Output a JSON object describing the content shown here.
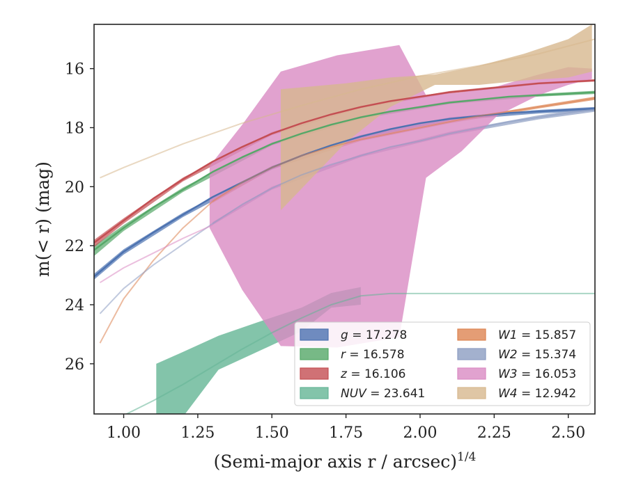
{
  "chart_data": {
    "type": "line",
    "xlabel": "(Semi-major axis r / arcsec)",
    "xlabel_superscript": "1/4",
    "ylabel": "m(< r) (mag)",
    "xlim": [
      0.9,
      2.59
    ],
    "ylim": [
      27.7,
      14.5
    ],
    "y_inverted": true,
    "x_ticks": [
      1.0,
      1.25,
      1.5,
      1.75,
      2.0,
      2.25,
      2.5
    ],
    "x_tick_labels": [
      "1.00",
      "1.25",
      "1.50",
      "1.75",
      "2.00",
      "2.25",
      "2.50"
    ],
    "y_ticks": [
      16,
      18,
      20,
      22,
      24,
      26
    ],
    "y_tick_labels": [
      "16",
      "18",
      "20",
      "22",
      "24",
      "26"
    ],
    "grid": false,
    "legend_position": "lower-right",
    "series": [
      {
        "name": "g = 17.278",
        "color": "#4c72b0",
        "line": [
          [
            0.9,
            23.05
          ],
          [
            1.0,
            22.2
          ],
          [
            1.1,
            21.55
          ],
          [
            1.2,
            20.95
          ],
          [
            1.3,
            20.35
          ],
          [
            1.4,
            19.85
          ],
          [
            1.5,
            19.35
          ],
          [
            1.6,
            18.95
          ],
          [
            1.7,
            18.6
          ],
          [
            1.8,
            18.3
          ],
          [
            1.9,
            18.05
          ],
          [
            2.0,
            17.85
          ],
          [
            2.1,
            17.7
          ],
          [
            2.2,
            17.6
          ],
          [
            2.3,
            17.5
          ],
          [
            2.4,
            17.45
          ],
          [
            2.5,
            17.4
          ],
          [
            2.59,
            17.35
          ]
        ],
        "band": [
          [
            0.9,
            22.95,
            23.15
          ],
          [
            1.0,
            22.12,
            22.3
          ],
          [
            1.2,
            20.88,
            21.03
          ],
          [
            1.5,
            19.3,
            19.42
          ],
          [
            1.8,
            18.25,
            18.36
          ],
          [
            2.1,
            17.65,
            17.76
          ],
          [
            2.4,
            17.4,
            17.52
          ],
          [
            2.59,
            17.3,
            17.42
          ]
        ]
      },
      {
        "name": "r = 16.578",
        "color": "#55a868",
        "line": [
          [
            0.9,
            22.15
          ],
          [
            1.0,
            21.4
          ],
          [
            1.1,
            20.7
          ],
          [
            1.2,
            20.1
          ],
          [
            1.3,
            19.5
          ],
          [
            1.4,
            19.0
          ],
          [
            1.5,
            18.55
          ],
          [
            1.6,
            18.2
          ],
          [
            1.7,
            17.9
          ],
          [
            1.8,
            17.65
          ],
          [
            1.9,
            17.45
          ],
          [
            2.0,
            17.3
          ],
          [
            2.1,
            17.15
          ],
          [
            2.2,
            17.05
          ],
          [
            2.3,
            16.95
          ],
          [
            2.4,
            16.9
          ],
          [
            2.5,
            16.85
          ],
          [
            2.59,
            16.8
          ]
        ],
        "band": [
          [
            0.9,
            22.0,
            22.35
          ],
          [
            1.0,
            21.3,
            21.5
          ],
          [
            1.2,
            20.03,
            20.18
          ],
          [
            1.5,
            18.5,
            18.6
          ],
          [
            1.8,
            17.6,
            17.7
          ],
          [
            2.1,
            17.1,
            17.2
          ],
          [
            2.4,
            16.85,
            16.95
          ],
          [
            2.59,
            16.75,
            16.86
          ]
        ]
      },
      {
        "name": "z = 16.106",
        "color": "#c44e52",
        "line": [
          [
            0.9,
            21.9
          ],
          [
            1.0,
            21.15
          ],
          [
            1.1,
            20.4
          ],
          [
            1.2,
            19.75
          ],
          [
            1.3,
            19.15
          ],
          [
            1.4,
            18.65
          ],
          [
            1.5,
            18.2
          ],
          [
            1.6,
            17.85
          ],
          [
            1.7,
            17.55
          ],
          [
            1.8,
            17.3
          ],
          [
            1.9,
            17.1
          ],
          [
            2.0,
            16.95
          ],
          [
            2.1,
            16.8
          ],
          [
            2.2,
            16.7
          ],
          [
            2.3,
            16.6
          ],
          [
            2.4,
            16.5
          ],
          [
            2.5,
            16.45
          ],
          [
            2.59,
            16.4
          ]
        ],
        "band": [
          [
            0.9,
            21.8,
            22.05
          ],
          [
            1.0,
            21.07,
            21.25
          ],
          [
            1.2,
            19.69,
            19.82
          ],
          [
            1.5,
            18.15,
            18.25
          ],
          [
            1.8,
            17.26,
            17.34
          ],
          [
            2.1,
            16.76,
            16.84
          ],
          [
            2.4,
            16.46,
            16.54
          ],
          [
            2.59,
            16.36,
            16.44
          ]
        ]
      },
      {
        "name": "NUV = 23.641",
        "color": "#64b595",
        "line": [
          [
            0.9,
            28.2
          ],
          [
            1.0,
            27.75
          ],
          [
            1.1,
            27.25
          ],
          [
            1.2,
            26.7
          ],
          [
            1.3,
            26.1
          ],
          [
            1.4,
            25.5
          ],
          [
            1.5,
            24.95
          ],
          [
            1.6,
            24.45
          ],
          [
            1.7,
            24.0
          ],
          [
            1.8,
            23.7
          ],
          [
            1.9,
            23.62
          ],
          [
            2.0,
            23.62
          ],
          [
            2.3,
            23.62
          ],
          [
            2.59,
            23.62
          ]
        ],
        "band": [
          [
            1.11,
            26.0,
            28.5
          ],
          [
            1.2,
            25.6,
            27.8
          ],
          [
            1.32,
            25.05,
            26.2
          ],
          [
            1.45,
            24.6,
            25.6
          ],
          [
            1.6,
            24.1,
            24.9
          ],
          [
            1.7,
            23.6,
            24.1
          ],
          [
            1.8,
            23.4,
            24.0
          ]
        ]
      },
      {
        "name": "W1 = 15.857",
        "color": "#dd8452",
        "line": [
          [
            0.92,
            25.3
          ],
          [
            1.0,
            23.8
          ],
          [
            1.1,
            22.5
          ],
          [
            1.2,
            21.4
          ],
          [
            1.3,
            20.5
          ],
          [
            1.4,
            19.85
          ],
          [
            1.5,
            19.35
          ],
          [
            1.6,
            18.95
          ],
          [
            1.7,
            18.65
          ],
          [
            1.8,
            18.4
          ],
          [
            1.9,
            18.2
          ],
          [
            2.0,
            18.0
          ],
          [
            2.1,
            17.8
          ],
          [
            2.2,
            17.6
          ],
          [
            2.3,
            17.45
          ],
          [
            2.4,
            17.3
          ],
          [
            2.5,
            17.15
          ],
          [
            2.59,
            17.0
          ]
        ],
        "band": [
          [
            1.3,
            20.45,
            20.55
          ],
          [
            1.5,
            19.3,
            19.4
          ],
          [
            1.8,
            18.35,
            18.45
          ],
          [
            2.1,
            17.75,
            17.85
          ],
          [
            2.4,
            17.25,
            17.35
          ],
          [
            2.59,
            16.95,
            17.06
          ]
        ]
      },
      {
        "name": "W2 = 15.374",
        "color": "#8c9dc2",
        "line": [
          [
            0.92,
            24.3
          ],
          [
            1.0,
            23.45
          ],
          [
            1.1,
            22.65
          ],
          [
            1.2,
            21.95
          ],
          [
            1.3,
            21.25
          ],
          [
            1.4,
            20.6
          ],
          [
            1.5,
            20.05
          ],
          [
            1.6,
            19.6
          ],
          [
            1.7,
            19.25
          ],
          [
            1.8,
            18.95
          ],
          [
            1.9,
            18.65
          ],
          [
            2.0,
            18.45
          ],
          [
            2.1,
            18.2
          ],
          [
            2.2,
            18.0
          ],
          [
            2.3,
            17.8
          ],
          [
            2.4,
            17.65
          ],
          [
            2.5,
            17.5
          ],
          [
            2.59,
            17.38
          ]
        ],
        "band": [
          [
            1.3,
            21.2,
            21.3
          ],
          [
            1.5,
            20.0,
            20.1
          ],
          [
            1.8,
            18.9,
            19.0
          ],
          [
            2.1,
            18.14,
            18.26
          ],
          [
            2.4,
            17.58,
            17.72
          ],
          [
            2.59,
            17.3,
            17.46
          ]
        ]
      },
      {
        "name": "W3 = 16.053",
        "color": "#da8bc3",
        "line": [
          [
            0.92,
            23.25
          ],
          [
            1.0,
            22.75
          ],
          [
            1.1,
            22.25
          ],
          [
            1.2,
            21.75
          ],
          [
            1.3,
            21.3
          ]
        ],
        "band": [
          [
            1.29,
            19.3,
            21.4
          ],
          [
            1.4,
            17.9,
            23.5
          ],
          [
            1.53,
            16.1,
            25.4
          ],
          [
            1.72,
            15.55,
            25.45
          ],
          [
            1.93,
            15.2,
            25.1
          ],
          [
            2.02,
            16.9,
            19.7
          ],
          [
            2.14,
            16.8,
            18.8
          ],
          [
            2.26,
            16.6,
            17.6
          ],
          [
            2.4,
            16.2,
            16.9
          ],
          [
            2.5,
            15.95,
            16.55
          ],
          [
            2.58,
            16.0,
            16.35
          ]
        ]
      },
      {
        "name": "W4 = 12.942",
        "color": "#d7b88e",
        "line": [
          [
            0.92,
            19.7
          ],
          [
            1.0,
            19.35
          ],
          [
            1.2,
            18.55
          ],
          [
            1.4,
            17.85
          ],
          [
            1.6,
            17.25
          ],
          [
            1.8,
            16.7
          ],
          [
            2.0,
            16.25
          ],
          [
            2.2,
            15.9
          ],
          [
            2.4,
            15.5
          ],
          [
            2.59,
            15.0
          ]
        ],
        "band": [
          [
            1.53,
            16.7,
            20.8
          ],
          [
            1.75,
            16.5,
            18.5
          ],
          [
            1.9,
            16.3,
            17.3
          ],
          [
            2.05,
            16.2,
            16.55
          ],
          [
            2.2,
            15.9,
            16.55
          ],
          [
            2.35,
            15.5,
            16.4
          ],
          [
            2.5,
            15.0,
            16.3
          ],
          [
            2.58,
            14.5,
            16.1
          ]
        ]
      }
    ]
  }
}
